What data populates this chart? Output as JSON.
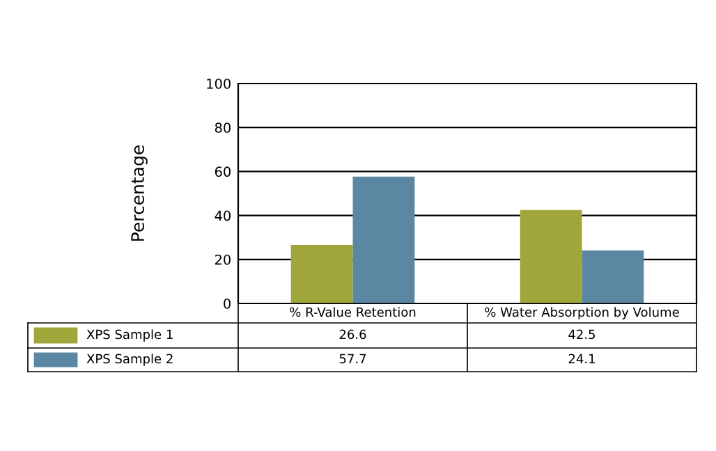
{
  "chart_data": {
    "type": "bar",
    "ylabel": "Percentage",
    "categories": [
      "% R-Value Retention",
      "% Water Absorption by Volume"
    ],
    "series": [
      {
        "name": "XPS Sample 1",
        "color": "#a0a73a",
        "values": [
          26.6,
          42.5
        ]
      },
      {
        "name": "XPS Sample 2",
        "color": "#5b87a3",
        "values": [
          57.7,
          24.1
        ]
      }
    ],
    "ylim": [
      0,
      100
    ],
    "yticks": [
      0,
      20,
      40,
      60,
      80,
      100
    ],
    "grid": "y",
    "legend": "bottom",
    "data_labels": true
  }
}
